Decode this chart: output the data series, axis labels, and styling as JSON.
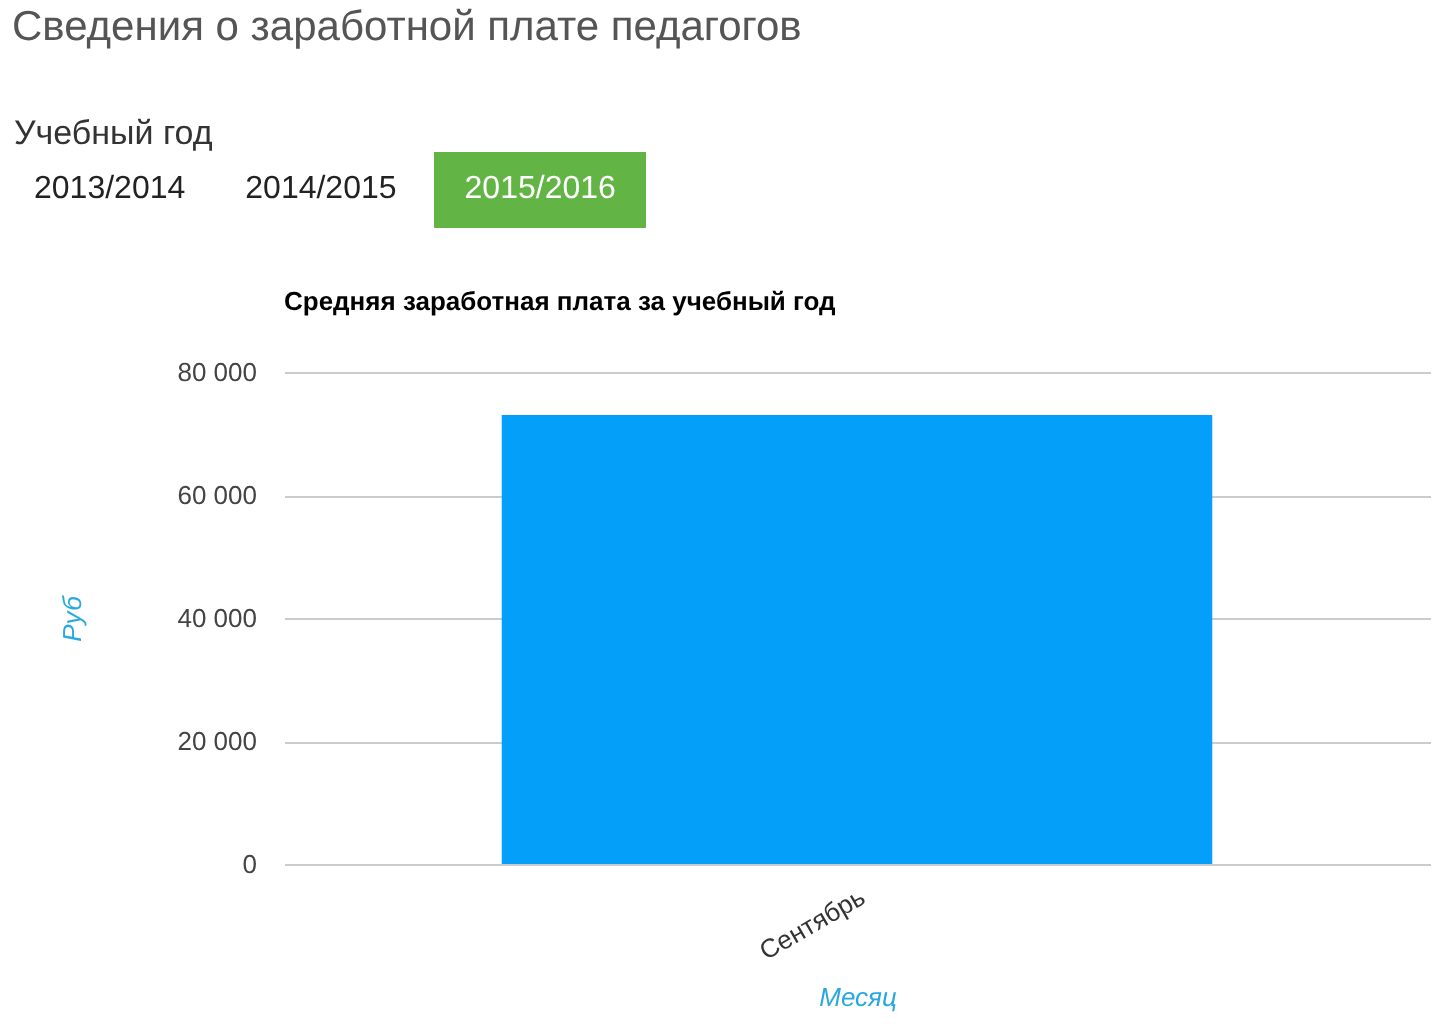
{
  "chart_data": {
    "type": "bar",
    "title": "Сведения о заработной плате педагогов",
    "subtitle": "Средняя заработная плата за учебный год",
    "annotations": [
      "Учебный год",
      "2013/2014",
      "2014/2015",
      "2015/2016"
    ],
    "xlabel": "Месяц",
    "ylabel": "Руб",
    "categories": [
      "Сентябрь"
    ],
    "values": [
      73000
    ],
    "color": "#039ff9",
    "ylim": [
      0,
      80000
    ],
    "yticks": [
      {
        "value": 0,
        "label": "0"
      },
      {
        "value": 20000,
        "label": "20 000"
      },
      {
        "value": 40000,
        "label": "40 000"
      },
      {
        "value": 60000,
        "label": "60 000"
      },
      {
        "value": 80000,
        "label": "80 000"
      }
    ],
    "grid": "y"
  }
}
